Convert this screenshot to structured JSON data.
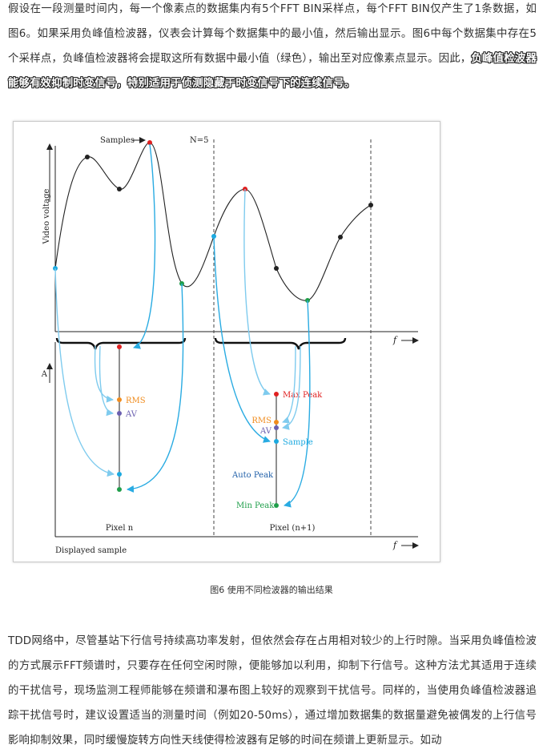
{
  "paragraph_top": {
    "normal": "假设在一段测量时间内，每一个像素点的数据集内有5个FFT BIN采样点，每个FFT BIN仅产生了1条数据，如图6。如果采用负峰值检波器，仪表会计算每个数据集中的最小值，然后输出显示。图6中每个数据集中存在5个采样点，负峰值检波器将会提取这所有数据中最小值（绿色），输出至对应像素点显示。因此，",
    "bold": "负峰值检波器能够有效抑制时变信号，特别适用于侦测隐藏于时变信号下的连续信号。"
  },
  "figure": {
    "label_samples": "Samples",
    "label_n": "N=5",
    "label_video_voltage": "Video voltage",
    "label_f_top": "f",
    "label_a": "A",
    "label_f_bottom": "f",
    "label_displayed_sample": "Displayed sample",
    "label_pixel_n": "Pixel n",
    "label_pixel_n1": "Pixel (n+1)",
    "label_rms_1": "RMS",
    "label_av_1": "AV",
    "label_max_peak": "Max Peak",
    "label_rms_2": "RMS",
    "label_av_2": "AV",
    "label_sample": "Sample",
    "label_auto_peak": "Auto Peak",
    "label_min_peak": "Min Peak",
    "colors": {
      "max_peak": "#e02020",
      "rms": "#f08c1e",
      "av": "#6a5fb0",
      "sample": "#1ba9e0",
      "min_peak": "#1f9e4a",
      "curve": "#222222",
      "arrow": "#29abe2"
    }
  },
  "caption": "图6 使用不同检波器的输出结果",
  "paragraph_bottom": "TDD网络中，尽管基站下行信号持续高功率发射，但依然会存在占用相对较少的上行时隙。当采用负峰值检波的方式展示FFT频谱时，只要存在任何空闲时隙，便能够加以利用，抑制下行信号。这种方法尤其适用于连续的干扰信号，现场监测工程师能够在频谱和瀑布图上较好的观察到干扰信号。同样的，当使用负峰值检波器追踪干扰信号时，建议设置适当的测量时间（例如20-50ms），通过增加数据集的数据量避免被偶发的上行信号影响抑制效果，同时缓慢旋转方向性天线使得检波器有足够的时间在频谱上更新显示。如动"
}
